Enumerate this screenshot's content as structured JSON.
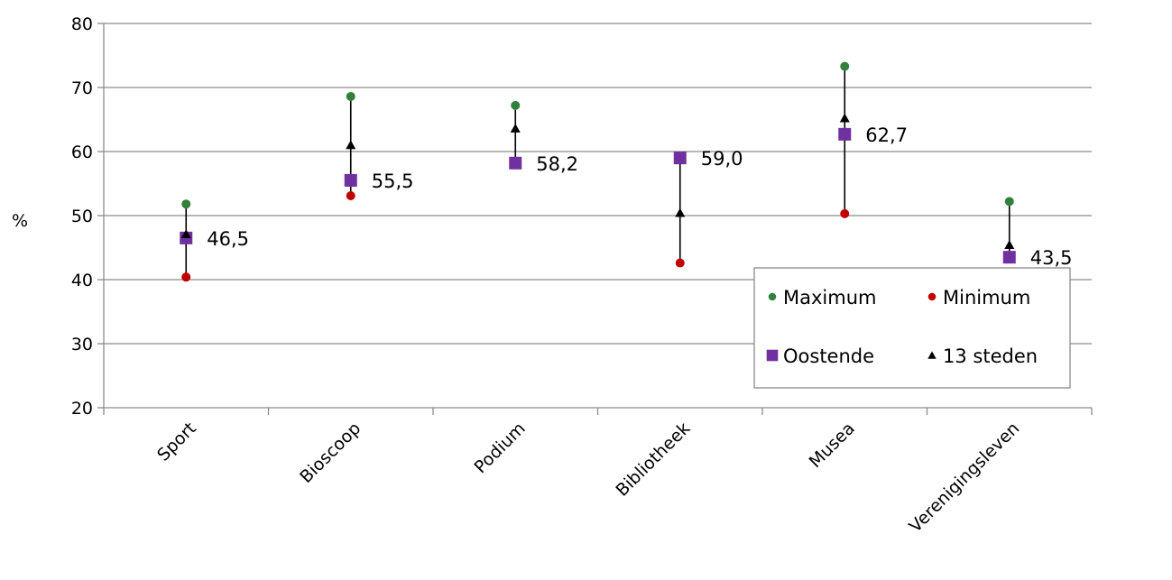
{
  "chart_data": {
    "type": "scatter",
    "title": "",
    "xlabel": "",
    "ylabel": "%",
    "ylim": [
      20,
      80
    ],
    "yticks": [
      20,
      30,
      40,
      50,
      60,
      70,
      80
    ],
    "grid": true,
    "legend_position": "bottom-right",
    "categories": [
      "Sport",
      "Bioscoop",
      "Podium",
      "Bibliotheek",
      "Musea",
      "Verenigingsleven"
    ],
    "series": [
      {
        "name": "Maximum",
        "marker": "circle",
        "color": "#31813d",
        "values": [
          51.8,
          68.6,
          67.2,
          59.1,
          73.3,
          52.2
        ]
      },
      {
        "name": "Minimum",
        "marker": "circle",
        "color": "#c00000",
        "values": [
          40.4,
          53.1,
          58.0,
          42.6,
          50.3,
          43.5
        ]
      },
      {
        "name": "Oostende",
        "marker": "square",
        "color": "#7030a0",
        "values": [
          46.5,
          55.5,
          58.2,
          59.0,
          62.7,
          43.5
        ],
        "labels": [
          "46,5",
          "55,5",
          "58,2",
          "59,0",
          "62,7",
          "43,5"
        ]
      },
      {
        "name": "13 steden",
        "marker": "triangle",
        "color": "#000000",
        "values": [
          47.1,
          61.0,
          63.6,
          50.4,
          65.2,
          45.4
        ]
      }
    ]
  }
}
